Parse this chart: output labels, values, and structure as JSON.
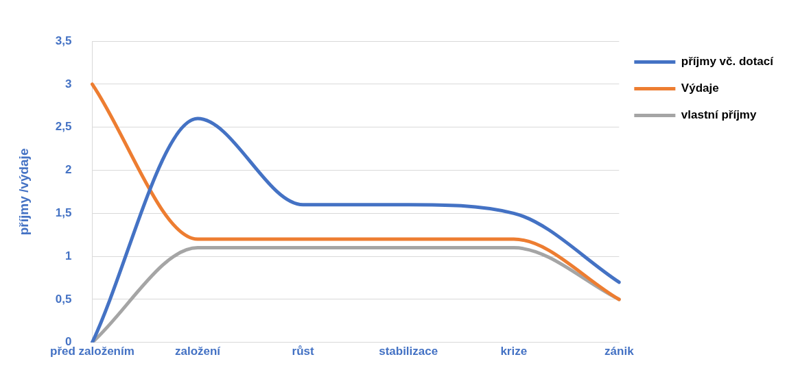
{
  "chart_data": {
    "type": "line",
    "ylabel": "příjmy /výdaje",
    "categories": [
      "před založením",
      "založení",
      "růst",
      "stabilizace",
      "krize",
      "zánik"
    ],
    "series": [
      {
        "name": "příjmy vč. dotací",
        "color": "#4472c4",
        "values": [
          0,
          2.6,
          1.6,
          1.6,
          1.5,
          0.7
        ]
      },
      {
        "name": "Výdaje",
        "color": "#ed7d31",
        "values": [
          3,
          1.2,
          1.2,
          1.2,
          1.2,
          0.5
        ]
      },
      {
        "name": "vlastní příjmy",
        "color": "#a5a5a5",
        "values": [
          0,
          1.1,
          1.1,
          1.1,
          1.1,
          0.5
        ]
      }
    ],
    "ylim": [
      0,
      3.5
    ],
    "yticks": [
      0,
      {
        "value": 0.5,
        "label": "0,5"
      },
      1,
      {
        "value": 1.5,
        "label": "1,5"
      },
      2,
      {
        "value": 2.5,
        "label": "2,5"
      },
      3,
      {
        "value": 3.5,
        "label": "3,5"
      }
    ],
    "grid": "y",
    "legend": "right",
    "marker": "none",
    "line_style": "solid"
  }
}
